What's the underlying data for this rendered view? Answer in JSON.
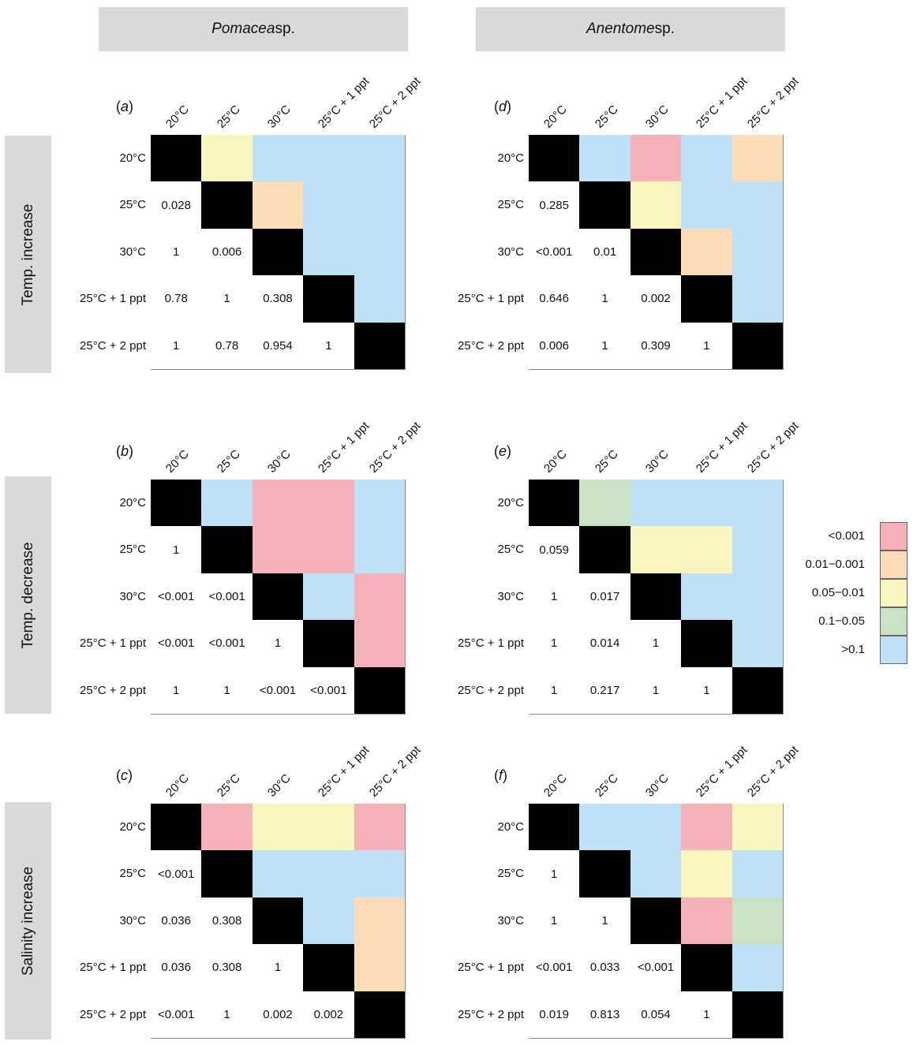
{
  "columns": [
    {
      "italic": "Pomacea",
      "rest": " sp."
    },
    {
      "italic": "Anentome",
      "rest": " sp."
    }
  ],
  "rows": [
    "Temp. increase",
    "Temp. decrease",
    "Salinity increase"
  ],
  "legend": [
    {
      "label": "<0.001",
      "color": "#f4b1b8"
    },
    {
      "label": "0.01−0.001",
      "color": "#fcdcb7"
    },
    {
      "label": "0.05−0.01",
      "color": "#f8f5bd"
    },
    {
      "label": "0.1−0.05",
      "color": "#c8e2c3"
    },
    {
      "label": ">0.1",
      "color": "#bfe0f5"
    }
  ],
  "chart_data": {
    "type": "heatmap",
    "diagonal_color": "#000000",
    "treatments": [
      "20°C",
      "25°C",
      "30°C",
      "25°C + 1 ppt",
      "25°C + 2 ppt"
    ],
    "panels": [
      {
        "label": "a",
        "species": "Pomacea sp.",
        "experiment": "Temp. increase",
        "lower": [
          [
            "0.028"
          ],
          [
            "1",
            "0.006"
          ],
          [
            "0.78",
            "1",
            "0.308"
          ],
          [
            "1",
            "0.78",
            "0.954",
            "1"
          ]
        ],
        "upper_category": [
          [
            ">0.1"
          ]
        ]
      }
    ]
  }
}
